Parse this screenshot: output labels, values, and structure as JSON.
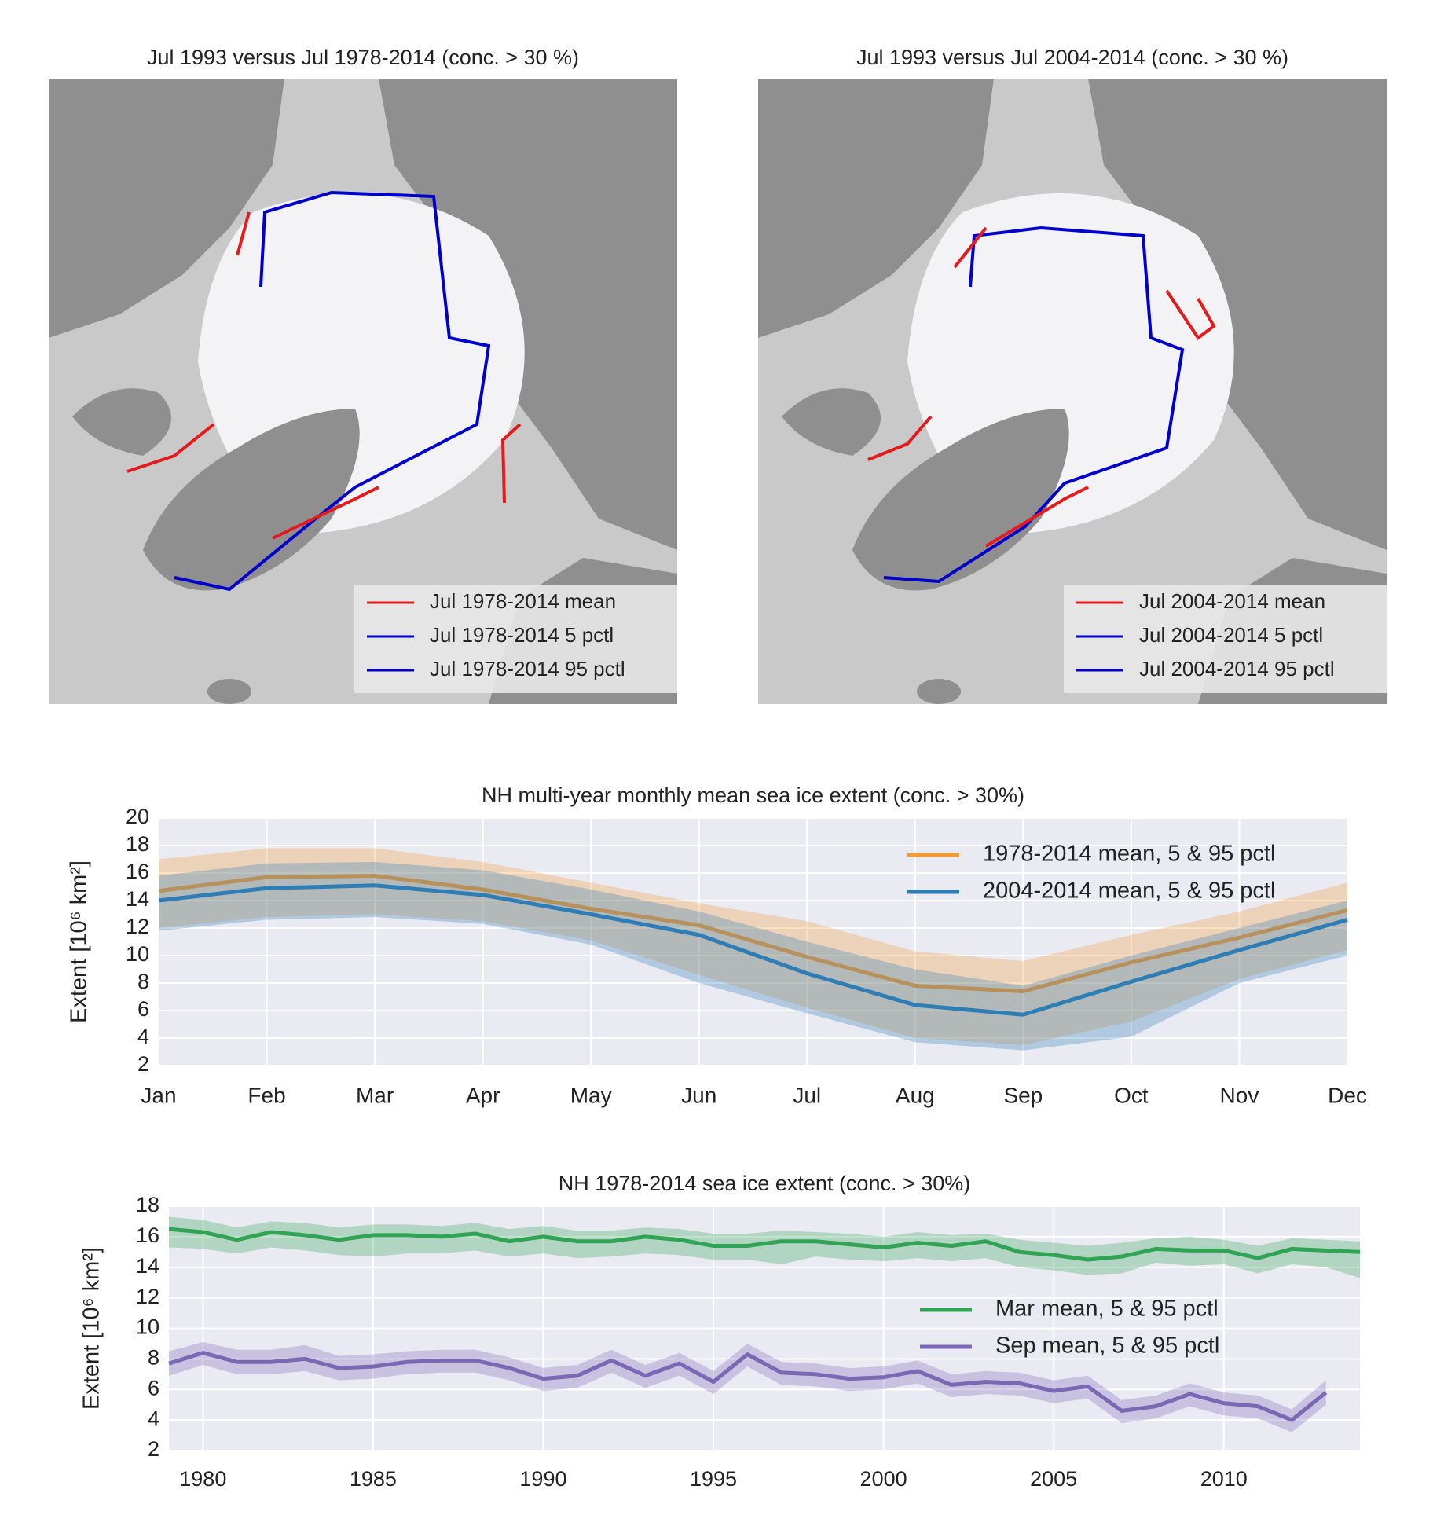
{
  "maps": [
    {
      "title": "Jul 1993 versus Jul 1978-2014 (conc. > 30 %)",
      "legend": [
        {
          "label": "Jul 1978-2014 mean",
          "color": "#e41a1c"
        },
        {
          "label": "Jul 1978-2014 5 pctl",
          "color": "#0000cc"
        },
        {
          "label": "Jul 1978-2014 95 pctl",
          "color": "#0000cc"
        }
      ]
    },
    {
      "title": "Jul 1993 versus Jul 2004-2014 (conc. > 30 %)",
      "legend": [
        {
          "label": "Jul 2004-2014 mean",
          "color": "#e41a1c"
        },
        {
          "label": "Jul 2004-2014 5 pctl",
          "color": "#0000cc"
        },
        {
          "label": "Jul 2004-2014 95 pctl",
          "color": "#0000cc"
        }
      ]
    }
  ],
  "chart_data": [
    {
      "type": "line",
      "title": "NH multi-year monthly mean sea ice extent (conc. > 30%)",
      "ylabel": "Extent [10⁶ km²]",
      "categories": [
        "Jan",
        "Feb",
        "Mar",
        "Apr",
        "May",
        "Jun",
        "Jul",
        "Aug",
        "Sep",
        "Oct",
        "Nov",
        "Dec"
      ],
      "ylim": [
        2,
        20
      ],
      "yticks": [
        2,
        4,
        6,
        8,
        10,
        12,
        14,
        16,
        18,
        20
      ],
      "grid": true,
      "legend": "upper right",
      "series": [
        {
          "name": "1978-2014 mean, 5 & 95 pctl",
          "color": "#f39a35",
          "values": [
            14.7,
            15.7,
            15.8,
            14.8,
            13.4,
            12.2,
            9.9,
            7.8,
            7.4,
            9.5,
            11.3,
            13.3
          ],
          "lower": [
            12.0,
            12.8,
            13.0,
            12.5,
            11.1,
            8.6,
            6.2,
            4.0,
            3.5,
            5.2,
            8.3,
            10.4
          ],
          "upper": [
            17.0,
            17.8,
            17.8,
            16.8,
            15.3,
            13.8,
            12.5,
            10.3,
            9.6,
            11.5,
            13.2,
            15.3
          ]
        },
        {
          "name": "2004-2014 mean, 5 & 95 pctl",
          "color": "#2e7db5",
          "values": [
            14.0,
            14.9,
            15.1,
            14.4,
            13.0,
            11.5,
            8.7,
            6.4,
            5.7,
            8.1,
            10.4,
            12.6
          ],
          "lower": [
            11.8,
            12.6,
            12.8,
            12.3,
            10.8,
            8.0,
            5.8,
            3.7,
            3.1,
            4.1,
            8.0,
            10.0
          ],
          "upper": [
            15.8,
            16.7,
            16.8,
            16.2,
            14.8,
            13.2,
            11.0,
            9.0,
            7.8,
            10.0,
            12.0,
            14.0
          ]
        }
      ]
    },
    {
      "type": "line",
      "title": "NH 1978-2014 sea ice extent (conc. > 30%)",
      "ylabel": "Extent [10⁶ km²]",
      "x": [
        1979,
        1980,
        1981,
        1982,
        1983,
        1984,
        1985,
        1986,
        1987,
        1988,
        1989,
        1990,
        1991,
        1992,
        1993,
        1994,
        1995,
        1996,
        1997,
        1998,
        1999,
        2000,
        2001,
        2002,
        2003,
        2004,
        2005,
        2006,
        2007,
        2008,
        2009,
        2010,
        2011,
        2012,
        2013,
        2014
      ],
      "xlim": [
        1979,
        2014
      ],
      "xticks": [
        1980,
        1985,
        1990,
        1995,
        2000,
        2005,
        2010
      ],
      "ylim": [
        2,
        18
      ],
      "yticks": [
        2,
        4,
        6,
        8,
        10,
        12,
        14,
        16,
        18
      ],
      "grid": true,
      "legend": "center right",
      "series": [
        {
          "name": "Mar mean, 5 & 95 pctl",
          "color": "#31a354",
          "values": [
            16.5,
            16.3,
            15.8,
            16.3,
            16.1,
            15.8,
            16.1,
            16.1,
            16.0,
            16.2,
            15.7,
            16.0,
            15.7,
            15.7,
            16.0,
            15.8,
            15.4,
            15.4,
            15.7,
            15.7,
            15.5,
            15.3,
            15.6,
            15.4,
            15.7,
            15.0,
            14.8,
            14.5,
            14.7,
            15.2,
            15.1,
            15.1,
            14.6,
            15.2,
            15.1,
            15.0
          ],
          "lower": [
            15.3,
            15.2,
            14.9,
            15.3,
            15.1,
            14.8,
            14.7,
            14.9,
            14.9,
            15.1,
            14.7,
            14.9,
            14.6,
            14.7,
            14.9,
            14.8,
            14.5,
            14.5,
            14.2,
            14.7,
            14.5,
            14.4,
            14.6,
            14.4,
            14.6,
            14.0,
            13.8,
            13.5,
            13.6,
            14.3,
            14.1,
            14.2,
            13.6,
            14.2,
            14.0,
            13.3
          ],
          "upper": [
            17.3,
            17.1,
            16.6,
            17.0,
            16.9,
            16.6,
            16.8,
            16.8,
            16.7,
            16.9,
            16.5,
            16.7,
            16.4,
            16.4,
            16.6,
            16.5,
            16.2,
            16.2,
            16.4,
            16.3,
            16.2,
            16.0,
            16.3,
            16.1,
            16.2,
            15.8,
            15.6,
            15.4,
            15.6,
            15.9,
            16.0,
            15.8,
            15.4,
            15.9,
            15.8,
            15.7
          ]
        },
        {
          "name": "Sep mean, 5 & 95 pctl",
          "color": "#7b68b5",
          "values": [
            7.7,
            8.4,
            7.8,
            7.8,
            8.0,
            7.4,
            7.5,
            7.8,
            7.9,
            7.9,
            7.4,
            6.7,
            6.9,
            7.9,
            6.9,
            7.7,
            6.5,
            8.3,
            7.1,
            7.0,
            6.7,
            6.8,
            7.2,
            6.3,
            6.5,
            6.4,
            5.9,
            6.2,
            4.6,
            4.9,
            5.7,
            5.1,
            4.9,
            4.0,
            5.8,
            null
          ],
          "lower": [
            6.9,
            7.6,
            7.0,
            7.0,
            7.2,
            6.6,
            6.7,
            7.0,
            7.1,
            7.1,
            6.6,
            5.9,
            6.1,
            7.1,
            6.1,
            6.9,
            5.7,
            7.5,
            6.3,
            6.2,
            5.9,
            6.0,
            6.4,
            5.5,
            5.7,
            5.6,
            5.1,
            5.4,
            3.8,
            4.1,
            4.9,
            4.3,
            4.1,
            3.2,
            5.0,
            null
          ],
          "upper": [
            8.5,
            9.1,
            8.6,
            8.6,
            8.9,
            8.2,
            8.3,
            8.5,
            8.6,
            8.6,
            8.1,
            7.4,
            7.6,
            8.6,
            7.6,
            8.4,
            7.2,
            9.0,
            7.8,
            7.7,
            7.4,
            7.5,
            7.9,
            7.0,
            7.2,
            7.1,
            6.6,
            6.9,
            5.3,
            5.6,
            6.4,
            5.8,
            5.6,
            4.7,
            6.6,
            null
          ]
        }
      ]
    }
  ]
}
